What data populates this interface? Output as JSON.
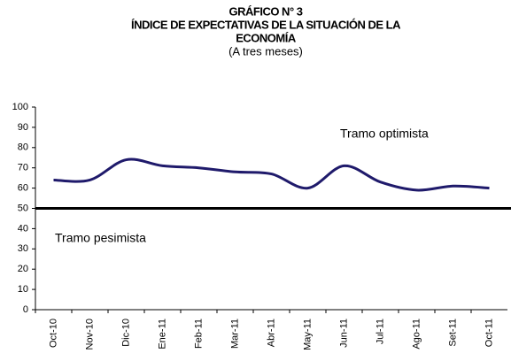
{
  "chart_data": {
    "type": "line",
    "title": "GRÁFICO N° 3",
    "heading": [
      "ÍNDICE DE EXPECTATIVAS DE LA SITUACIÓN DE LA",
      "ECONOMÍA"
    ],
    "subtitle": "(A tres meses)",
    "annotations": [
      "Tramo optimista",
      "Tramo pesimista"
    ],
    "categories": [
      "Oct-10",
      "Nov-10",
      "Dic-10",
      "Ene-11",
      "Feb-11",
      "Mar-11",
      "Abr-11",
      "May-11",
      "Jun-11",
      "Jul-11",
      "Ago-11",
      "Set-11",
      "Oct-11"
    ],
    "series": [
      {
        "name": "Índice",
        "color": "#1f1a6b",
        "values": [
          64,
          64,
          74,
          71,
          70,
          68,
          67,
          60,
          71,
          63,
          59,
          61,
          60
        ]
      }
    ],
    "reference_line": 50,
    "ylim": [
      0,
      100
    ],
    "yticks": [
      0,
      10,
      20,
      30,
      40,
      50,
      60,
      70,
      80,
      90,
      100
    ],
    "grid": false,
    "legend": false
  }
}
